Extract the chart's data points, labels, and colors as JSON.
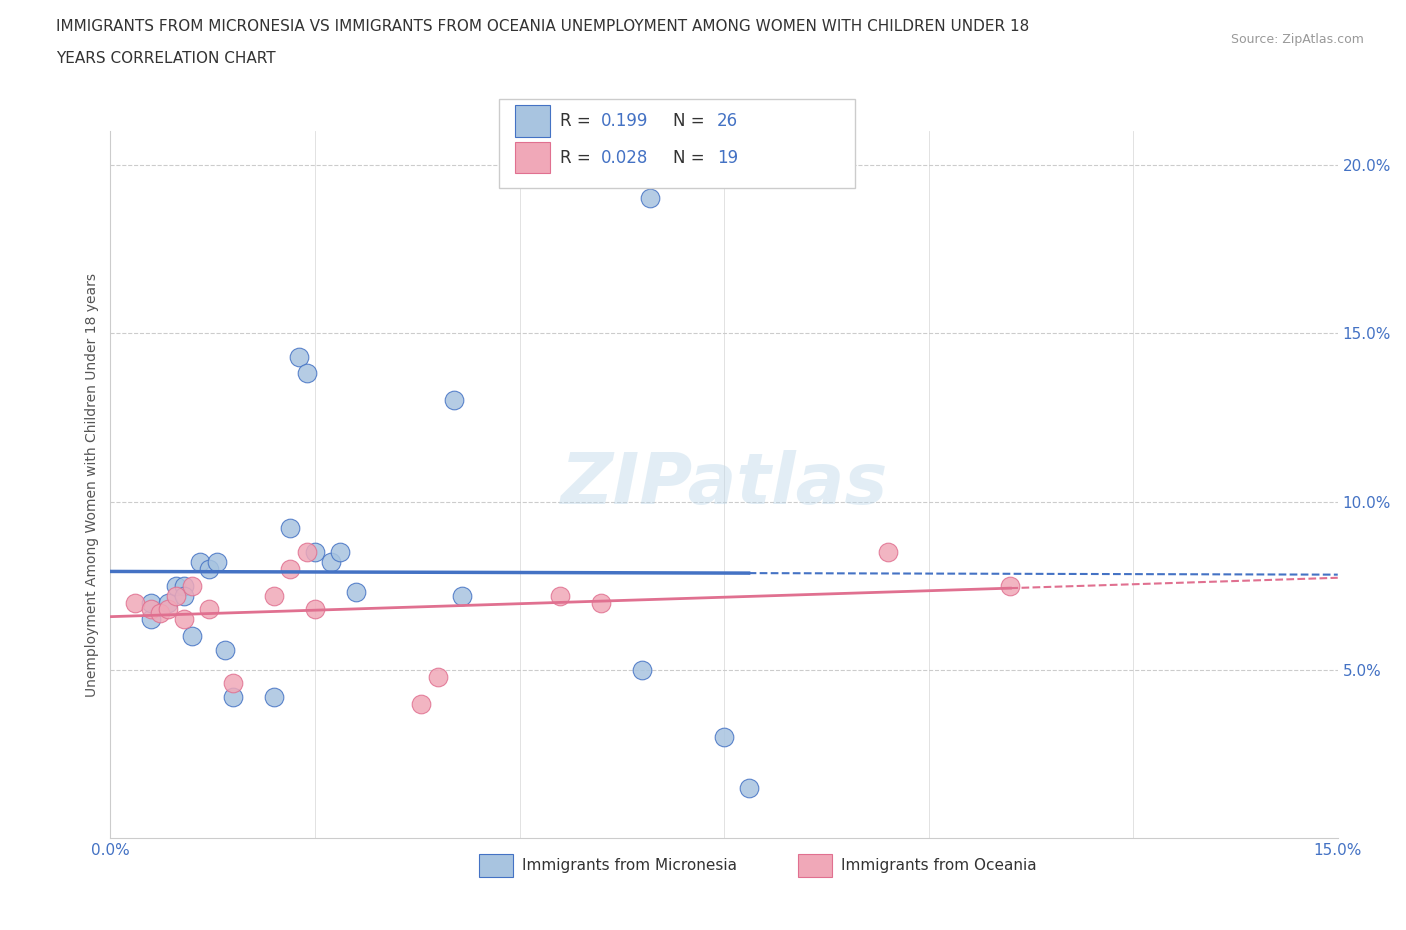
{
  "title_line1": "IMMIGRANTS FROM MICRONESIA VS IMMIGRANTS FROM OCEANIA UNEMPLOYMENT AMONG WOMEN WITH CHILDREN UNDER 18",
  "title_line2": "YEARS CORRELATION CHART",
  "source": "Source: ZipAtlas.com",
  "ylabel": "Unemployment Among Women with Children Under 18 years",
  "xlabel_micronesia": "Immigrants from Micronesia",
  "xlabel_oceania": "Immigrants from Oceania",
  "xlim": [
    0.0,
    0.15
  ],
  "ylim": [
    0.0,
    0.21
  ],
  "yticks": [
    0.05,
    0.1,
    0.15,
    0.2
  ],
  "xtick_labels_show": [
    "0.0%",
    "15.0%"
  ],
  "xtick_vals_show": [
    0.0,
    0.15
  ],
  "ytick_labels": [
    "5.0%",
    "10.0%",
    "15.0%",
    "20.0%"
  ],
  "R_micronesia": 0.199,
  "N_micronesia": 26,
  "R_oceania": 0.028,
  "N_oceania": 19,
  "color_micronesia": "#a8c4e0",
  "color_oceania": "#f0a8b8",
  "line_color_micronesia": "#4472c4",
  "line_color_oceania": "#e07090",
  "watermark": "ZIPatlas",
  "micronesia_x": [
    0.005,
    0.005,
    0.007,
    0.008,
    0.009,
    0.009,
    0.01,
    0.011,
    0.012,
    0.013,
    0.014,
    0.015,
    0.02,
    0.022,
    0.023,
    0.024,
    0.025,
    0.027,
    0.028,
    0.03,
    0.042,
    0.043,
    0.065,
    0.066,
    0.075,
    0.078
  ],
  "micronesia_y": [
    0.065,
    0.07,
    0.07,
    0.075,
    0.075,
    0.072,
    0.06,
    0.082,
    0.08,
    0.082,
    0.056,
    0.042,
    0.042,
    0.092,
    0.143,
    0.138,
    0.085,
    0.082,
    0.085,
    0.073,
    0.13,
    0.072,
    0.05,
    0.19,
    0.03,
    0.015
  ],
  "oceania_x": [
    0.003,
    0.005,
    0.006,
    0.007,
    0.008,
    0.009,
    0.01,
    0.012,
    0.015,
    0.02,
    0.022,
    0.024,
    0.025,
    0.038,
    0.04,
    0.055,
    0.06,
    0.095,
    0.11
  ],
  "oceania_y": [
    0.07,
    0.068,
    0.067,
    0.068,
    0.072,
    0.065,
    0.075,
    0.068,
    0.046,
    0.072,
    0.08,
    0.085,
    0.068,
    0.04,
    0.048,
    0.072,
    0.07,
    0.085,
    0.075
  ]
}
